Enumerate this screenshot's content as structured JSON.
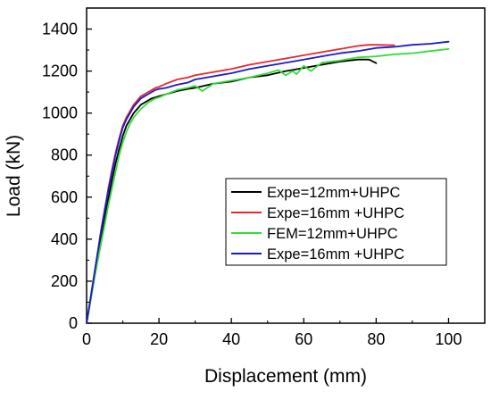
{
  "chart_data": {
    "type": "line",
    "title": "",
    "xlabel": "Displacement (mm)",
    "ylabel": "Load (kN)",
    "xlim": [
      0,
      110
    ],
    "ylim": [
      0,
      1500
    ],
    "xticks": [
      0,
      20,
      40,
      60,
      80,
      100
    ],
    "yticks": [
      0,
      200,
      400,
      600,
      800,
      1000,
      1200,
      1400
    ],
    "legend_position": "center-right",
    "grid": false,
    "series": [
      {
        "name": "Expe=12mm+UHPC",
        "color": "#000000",
        "x": [
          0,
          1,
          2,
          3,
          4,
          5,
          6,
          7,
          8,
          9,
          10,
          11,
          12,
          13,
          14,
          15,
          16,
          17,
          18,
          19,
          20,
          22,
          25,
          28,
          30,
          35,
          40,
          45,
          50,
          55,
          60,
          65,
          70,
          75,
          78,
          80
        ],
        "y": [
          0,
          100,
          200,
          300,
          400,
          500,
          590,
          680,
          760,
          830,
          890,
          940,
          970,
          1000,
          1020,
          1040,
          1050,
          1060,
          1070,
          1075,
          1080,
          1090,
          1105,
          1115,
          1120,
          1140,
          1150,
          1170,
          1180,
          1200,
          1215,
          1230,
          1245,
          1255,
          1255,
          1238
        ]
      },
      {
        "name": "Expe=16mm +UHPC",
        "color": "#e8272a",
        "x": [
          0,
          1,
          2,
          3,
          4,
          5,
          6,
          7,
          8,
          9,
          10,
          11,
          12,
          13,
          14,
          15,
          16,
          17,
          18,
          19,
          20,
          22,
          25,
          28,
          30,
          35,
          40,
          45,
          50,
          55,
          60,
          65,
          70,
          75,
          78,
          80,
          85
        ],
        "y": [
          0,
          110,
          220,
          330,
          440,
          540,
          640,
          730,
          810,
          880,
          940,
          980,
          1010,
          1040,
          1060,
          1080,
          1090,
          1100,
          1110,
          1120,
          1125,
          1140,
          1160,
          1170,
          1180,
          1195,
          1210,
          1230,
          1245,
          1260,
          1275,
          1290,
          1305,
          1320,
          1325,
          1325,
          1323
        ]
      },
      {
        "name": "FEM=12mm+UHPC",
        "color": "#33dd33",
        "x": [
          0,
          1,
          2,
          3,
          4,
          5,
          6,
          7,
          8,
          9,
          10,
          11,
          12,
          13,
          14,
          15,
          16,
          17,
          18,
          19,
          20,
          22,
          25,
          28,
          30,
          32,
          35,
          40,
          45,
          50,
          53,
          55,
          57,
          58,
          60,
          62,
          65,
          70,
          75,
          80,
          85,
          90,
          95,
          100
        ],
        "y": [
          0,
          100,
          200,
          290,
          380,
          470,
          560,
          640,
          720,
          800,
          860,
          910,
          950,
          980,
          1000,
          1020,
          1035,
          1050,
          1060,
          1070,
          1075,
          1090,
          1110,
          1120,
          1130,
          1105,
          1140,
          1155,
          1170,
          1190,
          1205,
          1180,
          1200,
          1185,
          1225,
          1200,
          1240,
          1250,
          1265,
          1270,
          1280,
          1285,
          1295,
          1305
        ]
      },
      {
        "name": "Expe=16mm +UHPC",
        "color": "#1a1acc",
        "x": [
          0,
          1,
          2,
          3,
          4,
          5,
          6,
          7,
          8,
          9,
          10,
          11,
          12,
          13,
          14,
          15,
          16,
          17,
          18,
          19,
          20,
          22,
          25,
          28,
          30,
          35,
          40,
          45,
          50,
          55,
          60,
          65,
          70,
          75,
          80,
          85,
          90,
          95,
          100
        ],
        "y": [
          0,
          110,
          220,
          330,
          440,
          540,
          630,
          720,
          800,
          870,
          930,
          970,
          1000,
          1030,
          1050,
          1070,
          1080,
          1090,
          1100,
          1110,
          1115,
          1120,
          1135,
          1145,
          1160,
          1175,
          1190,
          1210,
          1225,
          1240,
          1255,
          1270,
          1285,
          1295,
          1310,
          1315,
          1325,
          1330,
          1340
        ]
      }
    ]
  }
}
